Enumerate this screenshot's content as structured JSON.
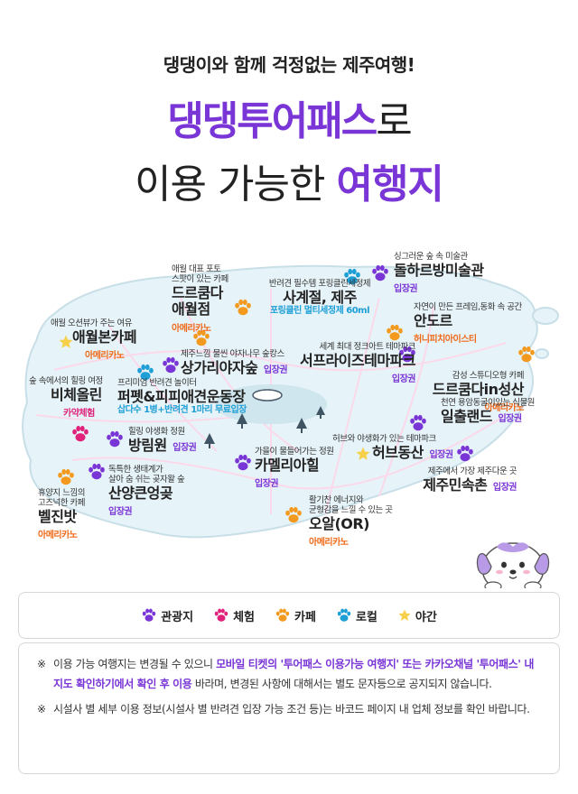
{
  "header": {
    "subtitle": "댕댕이와 함께 걱정없는 제주여행!",
    "title_brand": "댕댕투어패스",
    "title_suffix": "로",
    "title_line2_plain": "이용 가능한",
    "title_line2_highlight": "여행지"
  },
  "colors": {
    "tourist": "#7a35d6",
    "experience": "#e0227a",
    "cafe": "#f39a1e",
    "local": "#1e9fd6",
    "night": "#f6d04a"
  },
  "spots": [
    {
      "desc": "싱그러운 숲 속 미술관",
      "name": "돌하르방미술관",
      "tag": "입장권"
    },
    {
      "desc": "반려견 필수템 포링클린세정제",
      "name": "사계절, 제주",
      "sub": "포링클린 멀티세정제 60ml"
    },
    {
      "desc1": "애월 대표 포토",
      "desc2": "스팟이 있는 카페",
      "name1": "드르쿰다",
      "name2": "애월점",
      "tag": "아메리카노"
    },
    {
      "desc": "자연이 만든 프레임,동화 속 공간",
      "name": "안도르",
      "tag": "허니피치아이스티"
    },
    {
      "desc": "애월 오션뷰가 주는 여유",
      "name": "애월본카페",
      "tag": "아메리카노"
    },
    {
      "desc": "세계 최대 정크아트 테마파크",
      "name": "서프라이즈테마파크",
      "tag": "입장권"
    },
    {
      "desc": "제주느낌 물씬 야자나무 숲캉스",
      "name": "상가리야자숲",
      "tag": "입장권"
    },
    {
      "desc": "감성 스튜디오형 카페",
      "name": "드르쿰다in성산",
      "tag": "아메리카노"
    },
    {
      "desc": "숲 속에서의 힐링 여정",
      "name": "비체올린",
      "tag": "카약체험"
    },
    {
      "desc": "프리미엄 반려견 놀이터",
      "name": "퍼펫&피피애견운동장",
      "sub": "삽다수 1병+반려견 1마리 무료입장"
    },
    {
      "desc": "천연 용암동굴이있는 식물원",
      "name": "일출랜드",
      "tag": "입장권"
    },
    {
      "desc": "힐링 야생화 정원",
      "name": "방림원",
      "tag": "입장권"
    },
    {
      "desc": "가을이 물들어가는 정원",
      "name": "카멜리아힐",
      "tag": "입장권"
    },
    {
      "desc": "허브와 야생화가 있는 테마파크",
      "name": "허브동산",
      "tag": "입장권"
    },
    {
      "desc1": "독특한 생태계가",
      "desc2": "살아 숨 쉬는 곶자왈 숲",
      "name": "산양큰엉곶",
      "tag": "입장권"
    },
    {
      "desc": "제주에서 가장 제주다운 곳",
      "name": "제주민속촌",
      "tag": "입장권"
    },
    {
      "desc1": "휴양지 느낌의",
      "desc2": "고즈넉한 카페",
      "name": "벨진밧",
      "tag": "아메리카노"
    },
    {
      "desc1": "활기찬 에너지와",
      "desc2": "균형감을 느낄 수 있는 곳",
      "name": "오알(OR)",
      "tag": "아메리카노"
    }
  ],
  "legend": [
    {
      "label": "관광지",
      "icon": "paw-icon",
      "color": "#7a35d6"
    },
    {
      "label": "체험",
      "icon": "paw-icon",
      "color": "#e0227a"
    },
    {
      "label": "카페",
      "icon": "paw-icon",
      "color": "#f39a1e"
    },
    {
      "label": "로컬",
      "icon": "paw-icon",
      "color": "#1e9fd6"
    },
    {
      "label": "야간",
      "icon": "star-icon",
      "color": "#f6d04a"
    }
  ],
  "notes": {
    "mark": "※",
    "n1_a": "이용 가능 여행지는 변경될 수 있으니 ",
    "n1_b": "모바일 티켓의 '투어패스 이용가능 여행지' 또는 카카오채널 '투어패스' 내 지도 확인하기에서 확인 후 이용",
    "n1_c": " 바라며, 변경된 사항에 대해서는 별도 문자등으로 공지되지 않습니다.",
    "n2": "시설사 별 세부 이용 정보(시설사 별 반려견 입장 가능 조건 등)는 바코드 페이지 내 업체 정보를 확인 바랍니다."
  }
}
